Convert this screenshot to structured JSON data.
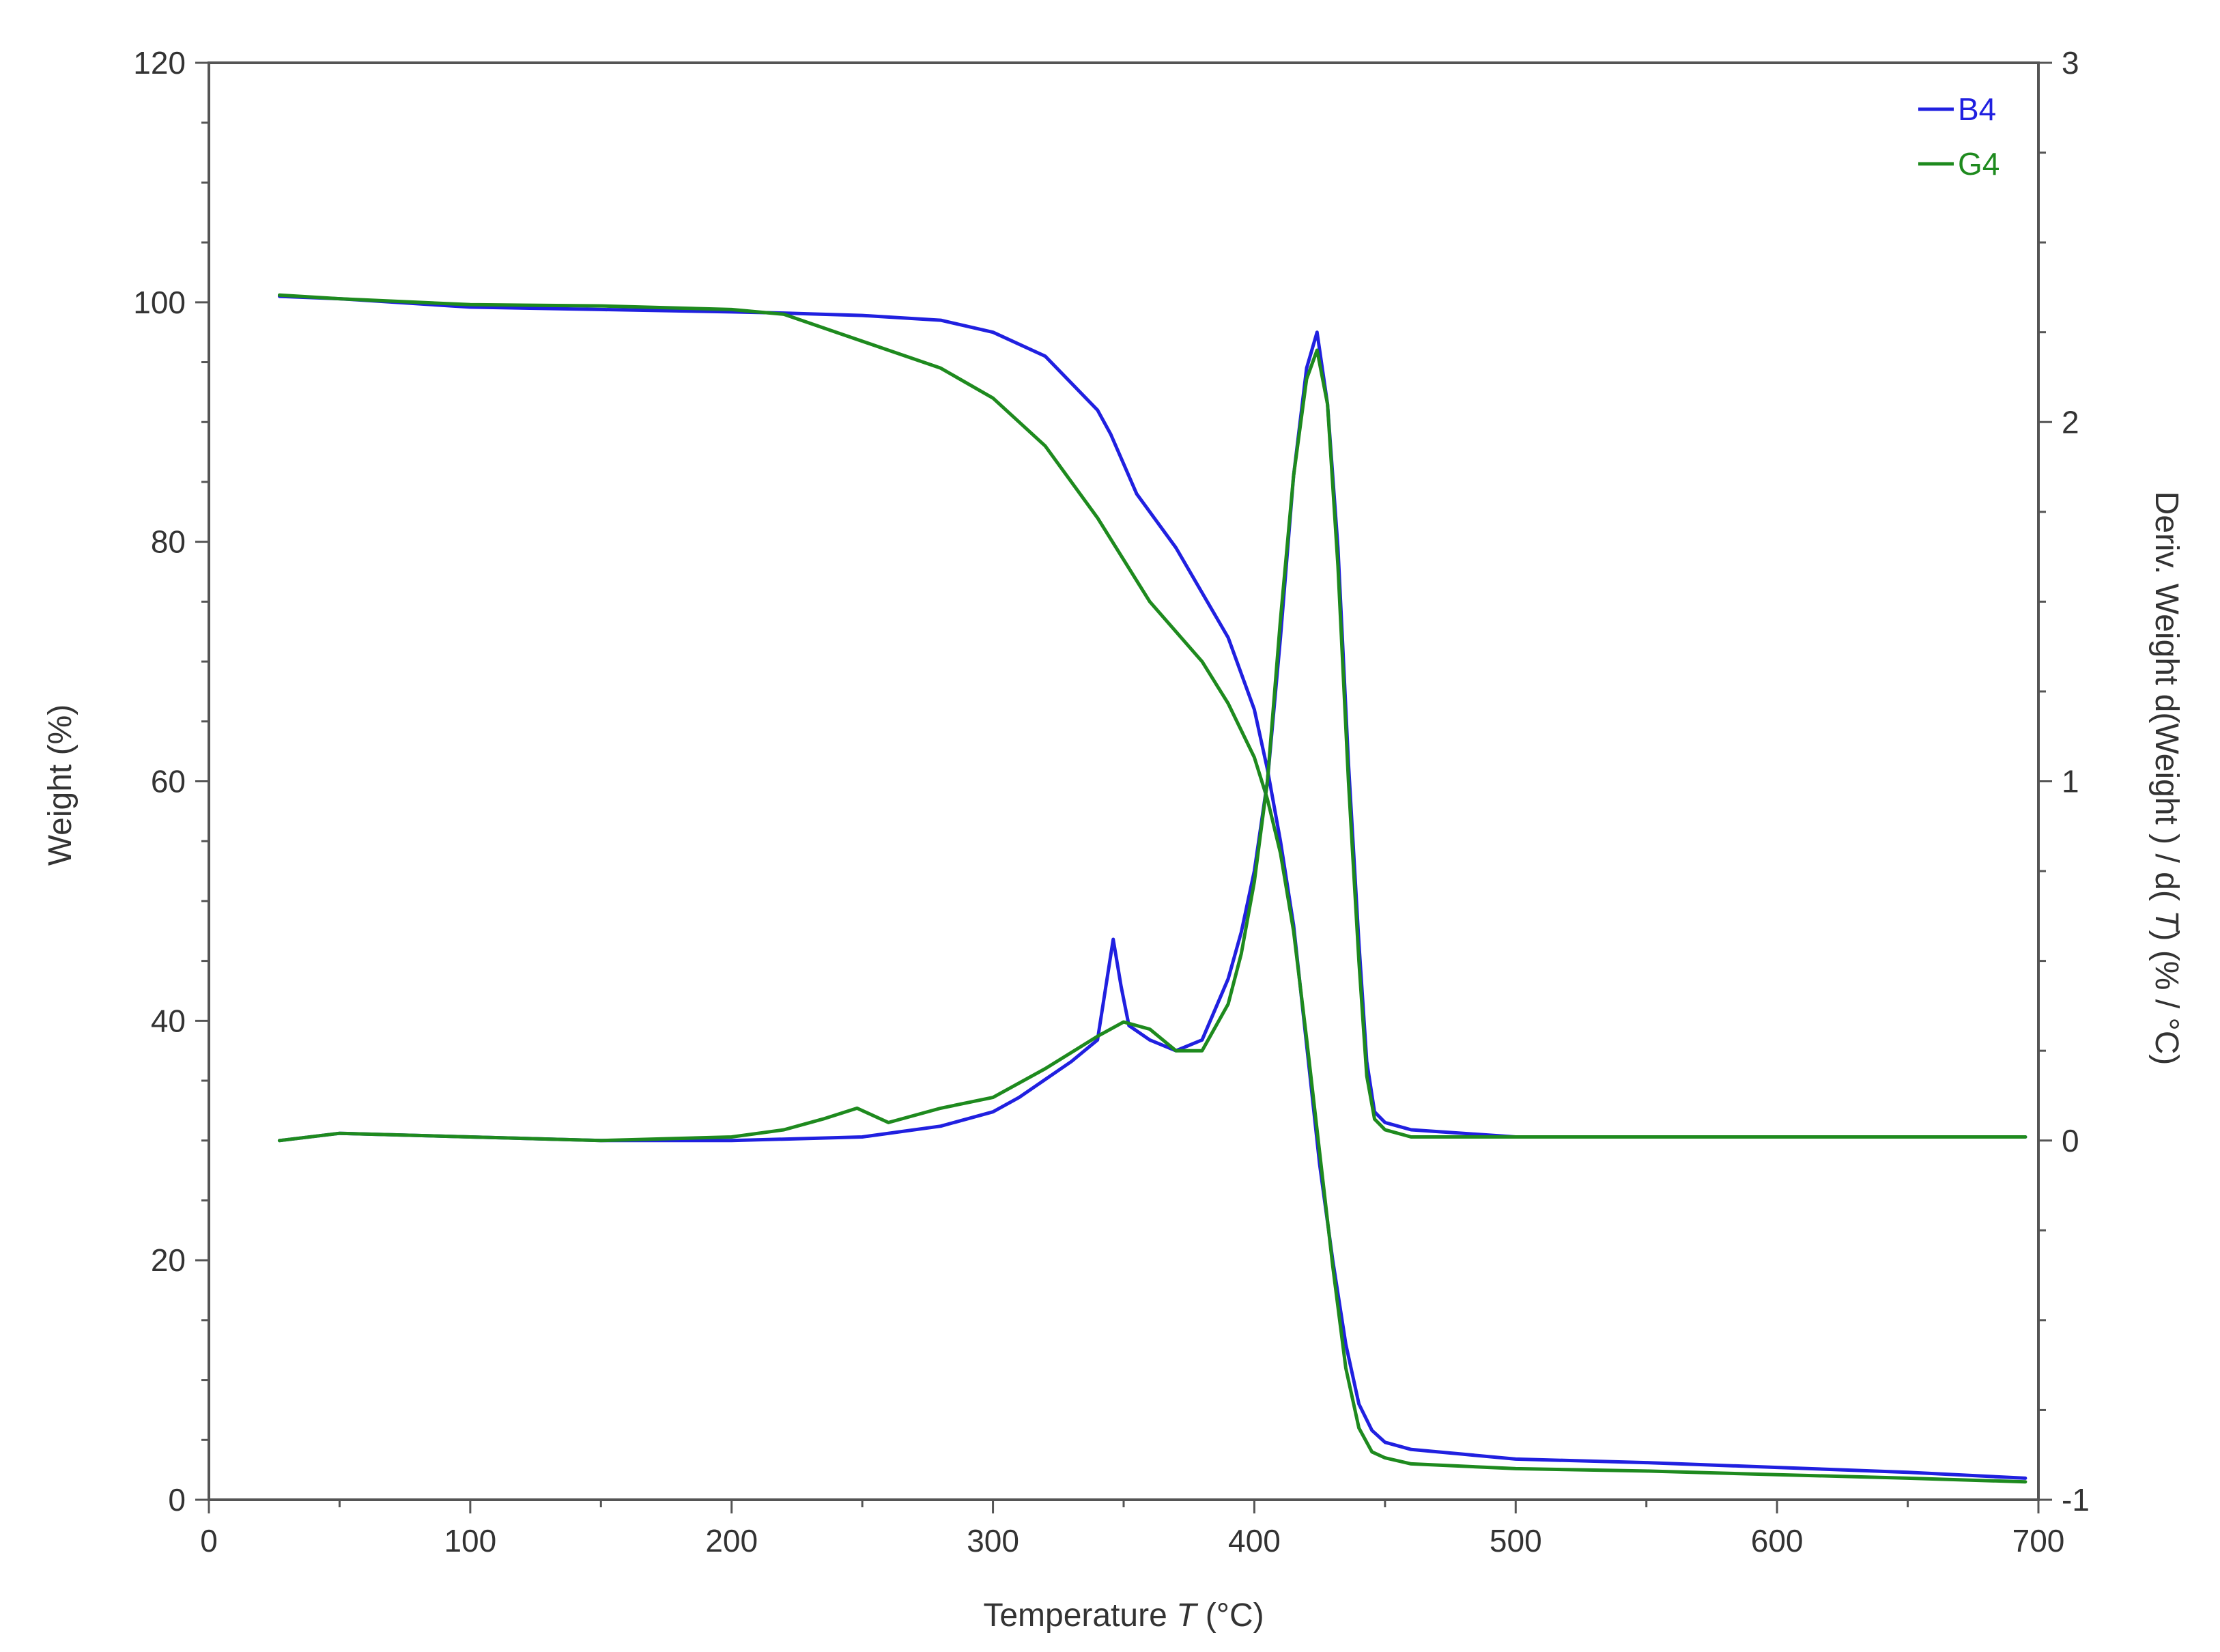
{
  "chart_data": {
    "type": "line",
    "title": "",
    "xlabel": {
      "pre": "Temperature ",
      "var": "T",
      "post": " (°C)"
    },
    "ylabel_left": "Weight  (%)",
    "ylabel_right": {
      "pre": "Deriv. Weight d(Weight ) / d( ",
      "var": "T",
      "post": ")  (% / °C)"
    },
    "xlim": [
      0,
      700
    ],
    "ylim_left": [
      0,
      120
    ],
    "ylim_right": [
      -1,
      3
    ],
    "x_ticks": [
      "0",
      "100",
      "200",
      "300",
      "400",
      "500",
      "600",
      "700"
    ],
    "y_left_ticks": [
      "0",
      "20",
      "40",
      "60",
      "80",
      "100",
      "120"
    ],
    "y_right_ticks": [
      "-1",
      "0",
      "1",
      "2",
      "3"
    ],
    "grid": false,
    "legend_position": "top-right",
    "series": [
      {
        "name": "B4",
        "color": "#2020e0",
        "axis": "left",
        "x": [
          27,
          50,
          100,
          150,
          200,
          220,
          250,
          280,
          300,
          320,
          340,
          345,
          355,
          370,
          390,
          400,
          405,
          410,
          415,
          420,
          425,
          430,
          435,
          440,
          445,
          450,
          460,
          480,
          500,
          550,
          600,
          650,
          695
        ],
        "y": [
          100.5,
          100.3,
          99.6,
          99.4,
          99.2,
          99.1,
          98.9,
          98.5,
          97.5,
          95.5,
          91.0,
          89.0,
          84.0,
          79.5,
          72.0,
          66.0,
          61.0,
          55.0,
          48.0,
          38.0,
          28.0,
          20.0,
          13.0,
          8.0,
          5.8,
          4.8,
          4.2,
          3.8,
          3.4,
          3.1,
          2.7,
          2.3,
          1.8
        ]
      },
      {
        "name": "G4",
        "color": "#1e8a1e",
        "axis": "left",
        "x": [
          27,
          50,
          100,
          150,
          200,
          220,
          240,
          260,
          280,
          300,
          320,
          340,
          360,
          380,
          390,
          400,
          405,
          410,
          415,
          420,
          425,
          430,
          435,
          440,
          445,
          450,
          460,
          480,
          500,
          550,
          600,
          650,
          695
        ],
        "y": [
          100.6,
          100.3,
          99.8,
          99.7,
          99.4,
          99.0,
          97.5,
          96.0,
          94.5,
          92.0,
          88.0,
          82.0,
          75.0,
          70.0,
          66.5,
          62.0,
          58.5,
          54.0,
          47.5,
          38.5,
          29.0,
          19.5,
          11.0,
          6.0,
          4.0,
          3.5,
          3.0,
          2.8,
          2.6,
          2.4,
          2.1,
          1.8,
          1.5
        ]
      },
      {
        "name": "B4",
        "color": "#2020e0",
        "axis": "right",
        "x": [
          27,
          50,
          100,
          150,
          200,
          250,
          280,
          300,
          310,
          320,
          330,
          340,
          343,
          346,
          349,
          352,
          360,
          370,
          380,
          390,
          395,
          400,
          405,
          410,
          415,
          420,
          424,
          428,
          432,
          436,
          440,
          443,
          446,
          450,
          460,
          480,
          500,
          550,
          600,
          650,
          695
        ],
        "y": [
          0.0,
          0.02,
          0.01,
          0.0,
          0.0,
          0.01,
          0.04,
          0.08,
          0.12,
          0.17,
          0.22,
          0.28,
          0.42,
          0.56,
          0.43,
          0.32,
          0.28,
          0.25,
          0.28,
          0.45,
          0.58,
          0.75,
          1.0,
          1.4,
          1.85,
          2.15,
          2.25,
          2.05,
          1.65,
          1.05,
          0.55,
          0.22,
          0.08,
          0.05,
          0.03,
          0.02,
          0.01,
          0.01,
          0.01,
          0.01,
          0.01
        ]
      },
      {
        "name": "G4",
        "color": "#1e8a1e",
        "axis": "right",
        "x": [
          27,
          50,
          100,
          150,
          200,
          220,
          235,
          248,
          260,
          280,
          300,
          320,
          340,
          350,
          360,
          370,
          380,
          390,
          395,
          400,
          405,
          410,
          415,
          420,
          424,
          428,
          432,
          436,
          440,
          443,
          446,
          450,
          460,
          480,
          500,
          550,
          600,
          650,
          695
        ],
        "y": [
          0.0,
          0.02,
          0.01,
          0.0,
          0.01,
          0.03,
          0.06,
          0.09,
          0.05,
          0.09,
          0.12,
          0.2,
          0.29,
          0.33,
          0.31,
          0.25,
          0.25,
          0.38,
          0.52,
          0.72,
          1.0,
          1.45,
          1.85,
          2.12,
          2.2,
          2.05,
          1.6,
          1.0,
          0.5,
          0.18,
          0.06,
          0.03,
          0.01,
          0.01,
          0.01,
          0.01,
          0.01,
          0.01,
          0.01
        ]
      }
    ]
  }
}
